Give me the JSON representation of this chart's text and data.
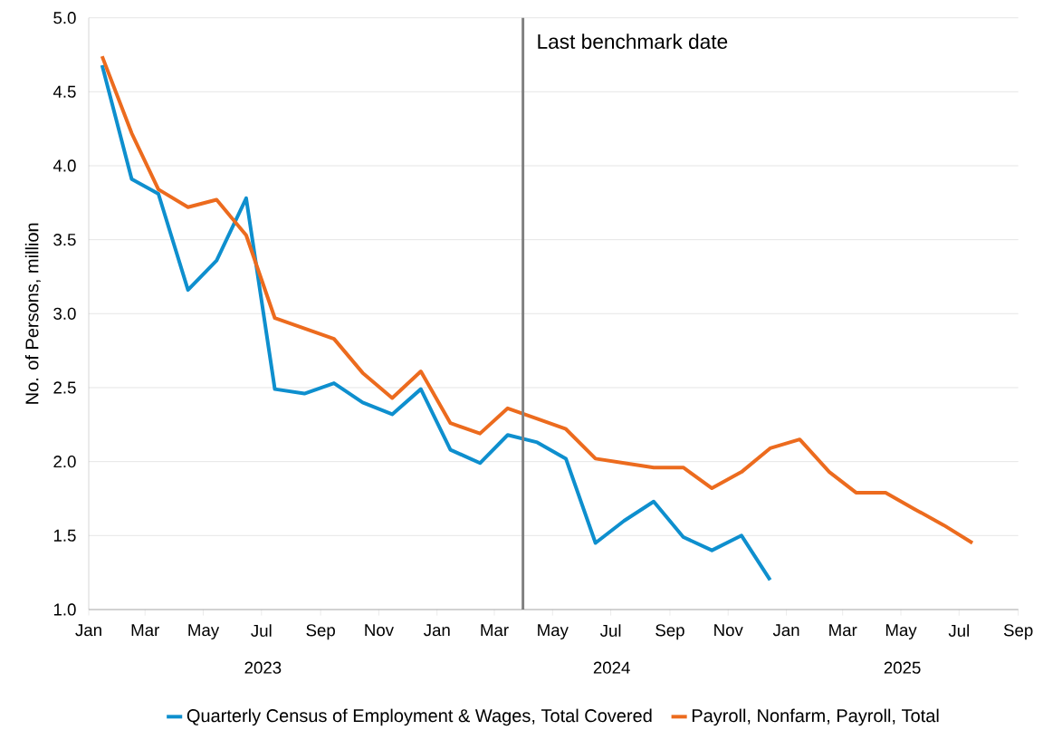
{
  "chart_data": {
    "type": "line",
    "ylabel": "No. of Persons, million",
    "x": [
      "2023-01-15",
      "2023-02-15",
      "2023-03-15",
      "2023-04-15",
      "2023-05-15",
      "2023-06-15",
      "2023-07-15",
      "2023-08-15",
      "2023-09-15",
      "2023-10-15",
      "2023-11-15",
      "2023-12-15",
      "2024-01-15",
      "2024-02-15",
      "2024-03-15",
      "2024-04-15",
      "2024-05-15",
      "2024-06-15",
      "2024-07-15",
      "2024-08-15",
      "2024-09-15",
      "2024-10-15",
      "2024-11-15",
      "2024-12-15",
      "2025-01-15",
      "2025-02-15",
      "2025-03-15",
      "2025-04-15",
      "2025-05-15",
      "2025-06-15",
      "2025-07-15"
    ],
    "series": [
      {
        "name": "Quarterly Census of Employment & Wages, Total Covered",
        "color": "#0e8fce",
        "values": [
          4.68,
          3.91,
          3.81,
          3.16,
          3.36,
          3.78,
          2.49,
          2.46,
          2.53,
          2.4,
          2.32,
          2.49,
          2.08,
          1.99,
          2.18,
          2.13,
          2.02,
          1.45,
          1.6,
          1.73,
          1.49,
          1.4,
          1.5,
          1.2,
          null,
          null,
          null,
          null,
          null,
          null,
          null
        ]
      },
      {
        "name": "Payroll, Nonfarm, Payroll, Total",
        "color": "#ec6b1e",
        "values": [
          4.74,
          4.22,
          3.84,
          3.72,
          3.77,
          3.53,
          2.97,
          2.9,
          2.83,
          2.6,
          2.43,
          2.61,
          2.26,
          2.19,
          2.36,
          2.29,
          2.22,
          2.02,
          1.99,
          1.96,
          1.96,
          1.82,
          1.93,
          2.09,
          2.15,
          1.93,
          1.79,
          1.79,
          1.68,
          1.57,
          1.45
        ]
      }
    ],
    "xlim": [
      "2023-01-01",
      "2025-09-01"
    ],
    "xticks": [
      {
        "value": "2023-01-01",
        "label": "Jan"
      },
      {
        "value": "2023-03-01",
        "label": "Mar"
      },
      {
        "value": "2023-05-01",
        "label": "May"
      },
      {
        "value": "2023-07-01",
        "label": "Jul"
      },
      {
        "value": "2023-09-01",
        "label": "Sep"
      },
      {
        "value": "2023-11-01",
        "label": "Nov"
      },
      {
        "value": "2024-01-01",
        "label": "Jan"
      },
      {
        "value": "2024-03-01",
        "label": "Mar"
      },
      {
        "value": "2024-05-01",
        "label": "May"
      },
      {
        "value": "2024-07-01",
        "label": "Jul"
      },
      {
        "value": "2024-09-01",
        "label": "Sep"
      },
      {
        "value": "2024-11-01",
        "label": "Nov"
      },
      {
        "value": "2025-01-01",
        "label": "Jan"
      },
      {
        "value": "2025-03-01",
        "label": "Mar"
      },
      {
        "value": "2025-05-01",
        "label": "May"
      },
      {
        "value": "2025-07-01",
        "label": "Jul"
      },
      {
        "value": "2025-09-01",
        "label": "Sep"
      }
    ],
    "ylim": [
      1.0,
      5.0
    ],
    "yticks": [
      {
        "value": 1.0,
        "label": "1.0"
      },
      {
        "value": 1.5,
        "label": "1.5"
      },
      {
        "value": 2.0,
        "label": "2.0"
      },
      {
        "value": 2.5,
        "label": "2.5"
      },
      {
        "value": 3.0,
        "label": "3.0"
      },
      {
        "value": 3.5,
        "label": "3.5"
      },
      {
        "value": 4.0,
        "label": "4.0"
      },
      {
        "value": 4.5,
        "label": "4.5"
      },
      {
        "value": 5.0,
        "label": "5.0"
      }
    ],
    "ref_lines": [
      {
        "axis": "x",
        "value": "2024-03-31",
        "label": "Last benchmark date",
        "color": "#808080"
      }
    ],
    "annotations": [
      "2023",
      "2024",
      "2025"
    ],
    "grid": "y",
    "legend": "bottom",
    "marker": "none",
    "line_style": "solid"
  }
}
